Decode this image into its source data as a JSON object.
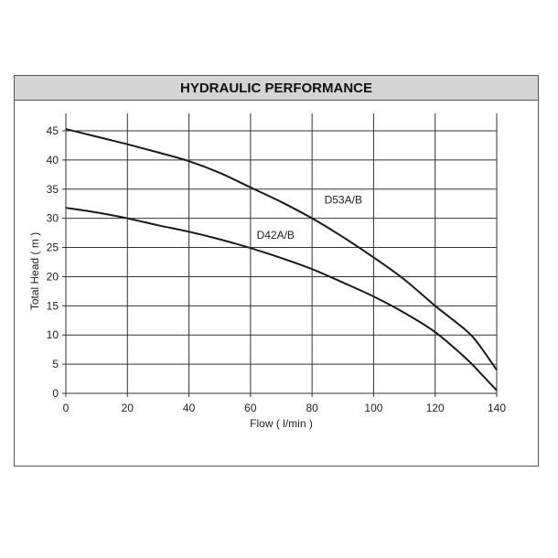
{
  "chart_data": {
    "type": "line",
    "title": "HYDRAULIC PERFORMANCE",
    "xlabel": "Flow ( l/min )",
    "ylabel": "Total Head ( m )",
    "xlim": [
      0,
      140
    ],
    "ylim": [
      0,
      45
    ],
    "xticks": [
      0,
      20,
      40,
      60,
      80,
      100,
      120,
      140
    ],
    "yticks": [
      0,
      5,
      10,
      15,
      20,
      25,
      30,
      35,
      40,
      45
    ],
    "grid": true,
    "line_color": "#1a1a1a",
    "series": [
      {
        "name": "D53A/B",
        "label_at": [
          84,
          32.5
        ],
        "x": [
          0,
          10,
          20,
          30,
          40,
          50,
          60,
          70,
          80,
          90,
          100,
          110,
          120,
          130,
          134,
          140
        ],
        "y": [
          45.3,
          44,
          42.7,
          41.3,
          39.8,
          37.8,
          35.3,
          32.8,
          30,
          26.8,
          23.3,
          19.5,
          15,
          10.8,
          8.5,
          4
        ]
      },
      {
        "name": "D42A/B",
        "label_at": [
          62,
          26.5
        ],
        "x": [
          0,
          10,
          20,
          30,
          40,
          50,
          60,
          70,
          80,
          90,
          100,
          110,
          120,
          130,
          135,
          140
        ],
        "y": [
          31.8,
          31,
          30,
          28.8,
          27.7,
          26.4,
          24.9,
          23.2,
          21.3,
          19,
          16.6,
          13.8,
          10.5,
          6,
          3.3,
          0.5
        ]
      }
    ]
  }
}
